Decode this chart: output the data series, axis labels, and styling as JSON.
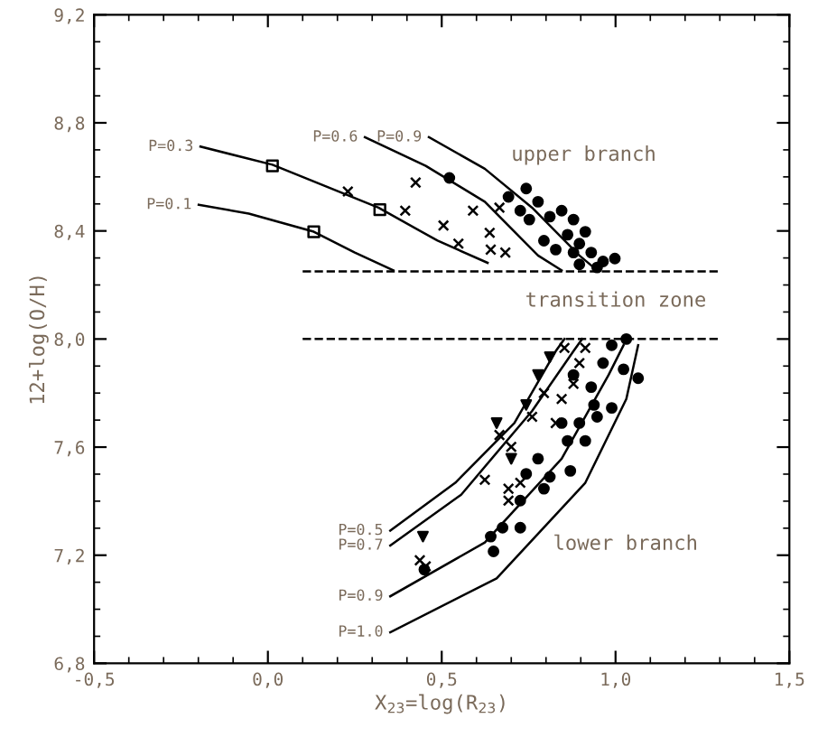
{
  "chart_data": {
    "type": "scatter",
    "xlabel": "X$_{23}$=log(R$_{23}$)",
    "ylabel": "12+log(O/H)",
    "xlim": [
      -0.5,
      1.5
    ],
    "ylim": [
      6.8,
      9.2
    ],
    "xticks": [
      {
        "value": -0.5,
        "label": "-0,5"
      },
      {
        "value": 0.0,
        "label": "0,0"
      },
      {
        "value": 0.5,
        "label": "0,5"
      },
      {
        "value": 1.0,
        "label": "1,0"
      },
      {
        "value": 1.5,
        "label": "1,5"
      }
    ],
    "yticks": [
      {
        "value": 6.8,
        "label": "6,8"
      },
      {
        "value": 7.2,
        "label": "7,2"
      },
      {
        "value": 7.6,
        "label": "7,6"
      },
      {
        "value": 8.0,
        "label": "8,0"
      },
      {
        "value": 8.4,
        "label": "8,4"
      },
      {
        "value": 8.8,
        "label": "8,8"
      },
      {
        "value": 9.2,
        "label": "9,2"
      }
    ],
    "grid": false,
    "legend": false,
    "annotations": [
      "upper branch",
      "transition zone",
      "lower branch"
    ],
    "ref_lines": [
      {
        "axis": "y",
        "value": 8.25,
        "color": "#000000",
        "line_style": "dashed"
      },
      {
        "axis": "y",
        "value": 8.0,
        "color": "#000000",
        "line_style": "dashed"
      }
    ],
    "series": [
      {
        "type": "line",
        "name": "P=0.1",
        "color": "#000000",
        "x": [
          -0.199,
          -0.055,
          0.132,
          0.25,
          0.361
        ],
        "values": [
          8.497,
          8.464,
          8.397,
          8.32,
          8.254
        ]
      },
      {
        "type": "line",
        "name": "P=0.3",
        "color": "#000000",
        "x": [
          -0.194,
          0.013,
          0.318,
          0.488,
          0.632
        ],
        "values": [
          8.712,
          8.645,
          8.486,
          8.364,
          8.282
        ]
      },
      {
        "type": "line",
        "name": "P=0.6",
        "color": "#000000",
        "x": [
          0.279,
          0.454,
          0.624,
          0.777,
          0.845
        ],
        "values": [
          8.747,
          8.641,
          8.508,
          8.309,
          8.254
        ]
      },
      {
        "type": "line",
        "name": "P=0.9",
        "color": "#000000",
        "x": [
          0.463,
          0.624,
          0.76,
          0.896,
          0.947
        ],
        "values": [
          8.747,
          8.63,
          8.486,
          8.309,
          8.254
        ]
      },
      {
        "type": "line",
        "name": "P=0.5",
        "color": "#000000",
        "x": [
          0.352,
          0.539,
          0.709,
          0.828,
          0.853
        ],
        "values": [
          7.291,
          7.468,
          7.689,
          7.955,
          8.0
        ]
      },
      {
        "type": "line",
        "name": "P=0.7",
        "color": "#000000",
        "x": [
          0.352,
          0.556,
          0.76,
          0.879,
          0.904
        ],
        "values": [
          7.236,
          7.424,
          7.734,
          7.955,
          8.0
        ]
      },
      {
        "type": "line",
        "name": "P=0.9",
        "color": "#000000",
        "x": [
          0.352,
          0.624,
          0.845,
          0.98,
          1.023
        ],
        "values": [
          7.048,
          7.247,
          7.557,
          7.867,
          7.977
        ]
      },
      {
        "type": "line",
        "name": "P=1.0",
        "color": "#000000",
        "x": [
          0.352,
          0.658,
          0.913,
          1.031,
          1.065
        ],
        "values": [
          6.915,
          7.114,
          7.468,
          7.778,
          7.977
        ]
      },
      {
        "marker": "square",
        "color": "#000000",
        "x": [
          0.013,
          0.132,
          0.322
        ],
        "values": [
          8.641,
          8.397,
          8.479
        ]
      },
      {
        "marker": "cross",
        "color": "#000000",
        "x": [
          0.23,
          0.425,
          0.395,
          0.505,
          0.548,
          0.59,
          0.638,
          0.666,
          0.641,
          0.683
        ],
        "values": [
          8.546,
          8.579,
          8.475,
          8.42,
          8.353,
          8.475,
          8.393,
          8.486,
          8.331,
          8.32
        ]
      },
      {
        "marker": "circle",
        "color": "#000000",
        "x": [
          0.522,
          0.743,
          0.692,
          0.726,
          0.777,
          0.811,
          0.845,
          0.879,
          0.913,
          0.862,
          0.794,
          0.828,
          0.896,
          0.93,
          0.964,
          0.998,
          0.896,
          0.947,
          0.879,
          0.752
        ],
        "values": [
          8.596,
          8.557,
          8.526,
          8.475,
          8.508,
          8.453,
          8.475,
          8.442,
          8.397,
          8.386,
          8.364,
          8.331,
          8.353,
          8.32,
          8.287,
          8.298,
          8.276,
          8.265,
          8.32,
          8.442
        ]
      },
      {
        "marker": "circle",
        "color": "#000000",
        "x": [
          1.031,
          0.989,
          1.023,
          0.964,
          0.93,
          0.938,
          0.947,
          0.896,
          0.913,
          0.862,
          0.87,
          0.811,
          0.794,
          0.777,
          0.743,
          0.726,
          0.675,
          0.641,
          0.726,
          0.649,
          0.45,
          0.845,
          1.065,
          0.989,
          0.879
        ],
        "values": [
          8.0,
          7.977,
          7.888,
          7.911,
          7.822,
          7.756,
          7.712,
          7.689,
          7.623,
          7.623,
          7.512,
          7.49,
          7.446,
          7.557,
          7.501,
          7.402,
          7.302,
          7.269,
          7.302,
          7.214,
          7.147,
          7.689,
          7.855,
          7.745,
          7.867
        ]
      },
      {
        "marker": "cross",
        "color": "#000000",
        "x": [
          0.853,
          0.913,
          0.896,
          0.879,
          0.845,
          0.828,
          0.76,
          0.7,
          0.666,
          0.624,
          0.692,
          0.726,
          0.692,
          0.437,
          0.454,
          0.794
        ],
        "values": [
          7.967,
          7.967,
          7.911,
          7.834,
          7.778,
          7.689,
          7.712,
          7.601,
          7.645,
          7.479,
          7.446,
          7.468,
          7.402,
          7.181,
          7.159,
          7.8
        ]
      },
      {
        "marker": "triangle",
        "color": "#000000",
        "x": [
          0.446,
          0.658,
          0.777,
          0.811,
          0.743,
          0.7
        ],
        "values": [
          7.269,
          7.689,
          7.867,
          7.933,
          7.756,
          7.557
        ]
      }
    ]
  }
}
